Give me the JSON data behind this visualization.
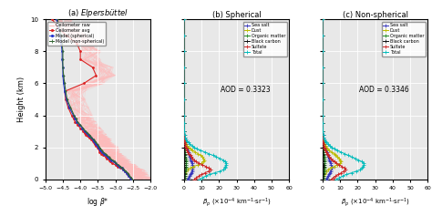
{
  "title_a": "(a) Elpersbüttel",
  "title_b": "(b) Spherical",
  "title_c": "(c) Non-spherical",
  "ylabel": "Height (km)",
  "ylim": [
    0,
    10
  ],
  "xlim_a": [
    -5.0,
    -2.0
  ],
  "xlim_bc": [
    0,
    60
  ],
  "xticks_a": [
    -5.0,
    -4.5,
    -4.0,
    -3.5,
    -3.0,
    -2.5,
    -2.0
  ],
  "xticks_bc": [
    0,
    10,
    20,
    30,
    40,
    50,
    60
  ],
  "yticks": [
    0,
    2,
    4,
    6,
    8,
    10
  ],
  "aod_b": "AOD = 0.3323",
  "aod_c": "AOD = 0.3346",
  "color_seasalt": "#3333bb",
  "color_dust": "#bbbb00",
  "color_organic": "#228822",
  "color_blackcarbon": "#111111",
  "color_sulfate": "#cc2222",
  "color_total": "#00bbbb",
  "color_ceil_raw": "#ffbbbb",
  "color_ceil_avg": "#dd2222",
  "color_model_sph": "#2233cc",
  "color_model_nonsph": "#336633",
  "bg_color": "#e8e8e8",
  "grid_color": "#ffffff",
  "height_a": [
    0.0,
    0.1,
    0.2,
    0.3,
    0.4,
    0.5,
    0.6,
    0.7,
    0.8,
    0.9,
    1.0,
    1.1,
    1.2,
    1.3,
    1.4,
    1.5,
    1.6,
    1.7,
    1.8,
    1.9,
    2.0,
    2.1,
    2.2,
    2.3,
    2.4,
    2.5,
    2.6,
    2.7,
    2.8,
    2.9,
    3.0,
    3.2,
    3.4,
    3.6,
    3.8,
    4.0,
    4.5,
    5.0,
    5.5,
    6.0,
    6.5,
    7.0,
    7.5,
    8.0,
    8.5,
    9.0,
    9.5,
    10.0
  ],
  "ceil_avg_x": [
    -2.55,
    -2.58,
    -2.62,
    -2.65,
    -2.68,
    -2.72,
    -2.78,
    -2.85,
    -2.95,
    -3.0,
    -3.1,
    -3.15,
    -3.18,
    -3.25,
    -3.28,
    -3.35,
    -3.4,
    -3.45,
    -3.45,
    -3.48,
    -3.5,
    -3.55,
    -3.6,
    -3.62,
    -3.65,
    -3.7,
    -3.75,
    -3.8,
    -3.85,
    -3.88,
    -3.92,
    -4.0,
    -4.08,
    -4.15,
    -4.2,
    -4.25,
    -4.35,
    -4.42,
    -4.45,
    -3.9,
    -3.55,
    -3.65,
    -4.0,
    -4.0,
    -4.1,
    -4.4,
    -4.65,
    -4.8
  ],
  "model_sph_x": [
    -2.55,
    -2.58,
    -2.62,
    -2.65,
    -2.68,
    -2.72,
    -2.78,
    -2.82,
    -2.88,
    -2.95,
    -3.0,
    -3.05,
    -3.12,
    -3.18,
    -3.22,
    -3.28,
    -3.32,
    -3.38,
    -3.42,
    -3.45,
    -3.48,
    -3.52,
    -3.55,
    -3.58,
    -3.62,
    -3.65,
    -3.7,
    -3.75,
    -3.78,
    -3.82,
    -3.88,
    -3.95,
    -4.02,
    -4.1,
    -4.15,
    -4.2,
    -4.32,
    -4.4,
    -4.45,
    -4.48,
    -4.5,
    -4.5,
    -4.52,
    -4.52,
    -4.55,
    -4.58,
    -4.62,
    -4.68
  ],
  "model_nonsph_x": [
    -2.52,
    -2.55,
    -2.6,
    -2.62,
    -2.65,
    -2.7,
    -2.76,
    -2.8,
    -2.85,
    -2.92,
    -2.98,
    -3.02,
    -3.08,
    -3.15,
    -3.18,
    -3.25,
    -3.28,
    -3.35,
    -3.38,
    -3.42,
    -3.45,
    -3.48,
    -3.52,
    -3.55,
    -3.58,
    -3.62,
    -3.68,
    -3.72,
    -3.75,
    -3.8,
    -3.85,
    -3.92,
    -4.0,
    -4.08,
    -4.12,
    -4.18,
    -4.28,
    -4.38,
    -4.42,
    -4.45,
    -4.48,
    -4.5,
    -4.5,
    -4.5,
    -4.52,
    -4.55,
    -4.6,
    -4.65
  ],
  "height_bc": [
    0.0,
    0.1,
    0.2,
    0.3,
    0.4,
    0.5,
    0.6,
    0.7,
    0.8,
    0.9,
    1.0,
    1.1,
    1.2,
    1.3,
    1.4,
    1.5,
    1.6,
    1.7,
    1.8,
    1.9,
    2.0,
    2.1,
    2.2,
    2.3,
    2.4,
    2.5,
    2.6,
    2.8,
    3.0,
    3.5,
    4.0,
    5.0,
    6.0,
    7.0,
    8.0,
    9.0,
    10.0
  ],
  "sea_salt_b": [
    2.0,
    2.5,
    3.0,
    3.5,
    4.0,
    4.5,
    4.8,
    5.0,
    5.0,
    4.8,
    4.5,
    4.2,
    3.8,
    3.5,
    3.2,
    3.0,
    2.8,
    2.5,
    2.2,
    2.0,
    1.8,
    1.5,
    1.2,
    1.0,
    0.8,
    0.6,
    0.4,
    0.3,
    0.2,
    0.1,
    0.05,
    0.02,
    0.01,
    0.0,
    0.0,
    0.0,
    0.0
  ],
  "dust_b": [
    0.2,
    0.3,
    0.4,
    0.5,
    0.8,
    1.2,
    2.0,
    3.5,
    5.5,
    8.0,
    10.0,
    11.0,
    11.5,
    11.0,
    10.5,
    9.5,
    8.0,
    6.5,
    5.0,
    3.5,
    2.5,
    1.8,
    1.2,
    0.8,
    0.5,
    0.3,
    0.2,
    0.1,
    0.05,
    0.02,
    0.01,
    0.0,
    0.0,
    0.0,
    0.0,
    0.0,
    0.0
  ],
  "organic_matter_b": [
    0.3,
    0.4,
    0.5,
    0.6,
    0.7,
    0.8,
    0.9,
    1.0,
    1.1,
    1.15,
    1.2,
    1.1,
    1.0,
    0.9,
    0.8,
    0.7,
    0.6,
    0.5,
    0.4,
    0.3,
    0.25,
    0.2,
    0.15,
    0.12,
    0.1,
    0.08,
    0.06,
    0.04,
    0.02,
    0.01,
    0.0,
    0.0,
    0.0,
    0.0,
    0.0,
    0.0,
    0.0
  ],
  "black_carbon_b": [
    0.1,
    0.12,
    0.14,
    0.16,
    0.18,
    0.2,
    0.22,
    0.24,
    0.26,
    0.26,
    0.25,
    0.24,
    0.22,
    0.2,
    0.18,
    0.16,
    0.14,
    0.12,
    0.1,
    0.08,
    0.06,
    0.05,
    0.04,
    0.03,
    0.02,
    0.015,
    0.01,
    0.005,
    0.002,
    0.001,
    0.0,
    0.0,
    0.0,
    0.0,
    0.0,
    0.0,
    0.0
  ],
  "sulfate_b": [
    6.0,
    7.0,
    8.5,
    10.0,
    12.0,
    14.0,
    15.0,
    14.0,
    12.5,
    10.5,
    8.5,
    7.0,
    6.0,
    5.0,
    4.2,
    3.5,
    2.8,
    2.2,
    1.8,
    1.4,
    1.1,
    0.8,
    0.6,
    0.45,
    0.32,
    0.22,
    0.15,
    0.08,
    0.04,
    0.01,
    0.0,
    0.0,
    0.0,
    0.0,
    0.0,
    0.0,
    0.0
  ],
  "total_b": [
    9.0,
    10.5,
    12.5,
    14.5,
    17.5,
    20.5,
    22.5,
    23.5,
    23.5,
    24.0,
    24.0,
    23.5,
    22.5,
    20.5,
    18.5,
    16.5,
    14.0,
    12.0,
    9.5,
    7.5,
    5.8,
    4.5,
    3.3,
    2.5,
    1.8,
    1.3,
    0.8,
    0.5,
    0.3,
    0.12,
    0.06,
    0.02,
    0.01,
    0.0,
    0.0,
    0.0,
    0.0
  ],
  "sea_salt_c": [
    2.0,
    2.5,
    3.0,
    3.5,
    4.0,
    4.5,
    4.8,
    5.0,
    5.0,
    4.8,
    4.5,
    4.2,
    3.8,
    3.5,
    3.2,
    3.0,
    2.8,
    2.5,
    2.2,
    2.0,
    1.8,
    1.5,
    1.2,
    1.0,
    0.8,
    0.6,
    0.4,
    0.3,
    0.2,
    0.1,
    0.05,
    0.02,
    0.01,
    0.0,
    0.0,
    0.0,
    0.0
  ],
  "dust_c": [
    0.2,
    0.3,
    0.5,
    0.8,
    1.2,
    2.0,
    3.0,
    4.5,
    6.5,
    8.5,
    10.0,
    10.5,
    10.0,
    9.5,
    8.5,
    7.5,
    6.5,
    5.0,
    3.8,
    2.8,
    2.0,
    1.4,
    0.9,
    0.6,
    0.35,
    0.2,
    0.12,
    0.06,
    0.03,
    0.01,
    0.0,
    0.0,
    0.0,
    0.0,
    0.0,
    0.0,
    0.0
  ],
  "organic_matter_c": [
    0.3,
    0.4,
    0.5,
    0.6,
    0.7,
    0.8,
    0.9,
    1.0,
    1.1,
    1.15,
    1.2,
    1.1,
    1.0,
    0.9,
    0.8,
    0.7,
    0.6,
    0.5,
    0.4,
    0.3,
    0.25,
    0.2,
    0.15,
    0.12,
    0.1,
    0.08,
    0.06,
    0.04,
    0.02,
    0.01,
    0.0,
    0.0,
    0.0,
    0.0,
    0.0,
    0.0,
    0.0
  ],
  "black_carbon_c": [
    0.1,
    0.12,
    0.14,
    0.16,
    0.18,
    0.2,
    0.22,
    0.24,
    0.26,
    0.26,
    0.25,
    0.24,
    0.22,
    0.2,
    0.18,
    0.16,
    0.14,
    0.12,
    0.1,
    0.08,
    0.06,
    0.05,
    0.04,
    0.03,
    0.02,
    0.015,
    0.01,
    0.005,
    0.002,
    0.001,
    0.0,
    0.0,
    0.0,
    0.0,
    0.0,
    0.0,
    0.0
  ],
  "sulfate_c": [
    5.0,
    6.0,
    7.5,
    9.0,
    10.5,
    12.0,
    13.0,
    12.5,
    11.0,
    9.5,
    8.0,
    6.5,
    5.5,
    4.5,
    3.8,
    3.2,
    2.6,
    2.0,
    1.6,
    1.2,
    0.9,
    0.65,
    0.48,
    0.35,
    0.24,
    0.16,
    0.1,
    0.05,
    0.02,
    0.008,
    0.0,
    0.0,
    0.0,
    0.0,
    0.0,
    0.0,
    0.0
  ],
  "total_c": [
    8.0,
    9.5,
    11.5,
    13.5,
    16.5,
    19.0,
    21.5,
    22.5,
    23.0,
    23.5,
    23.5,
    22.5,
    20.5,
    18.5,
    16.5,
    14.5,
    12.5,
    10.5,
    8.5,
    6.8,
    5.2,
    4.0,
    2.9,
    2.1,
    1.5,
    1.05,
    0.68,
    0.42,
    0.25,
    0.1,
    0.05,
    0.02,
    0.01,
    0.0,
    0.0,
    0.0,
    0.0
  ]
}
